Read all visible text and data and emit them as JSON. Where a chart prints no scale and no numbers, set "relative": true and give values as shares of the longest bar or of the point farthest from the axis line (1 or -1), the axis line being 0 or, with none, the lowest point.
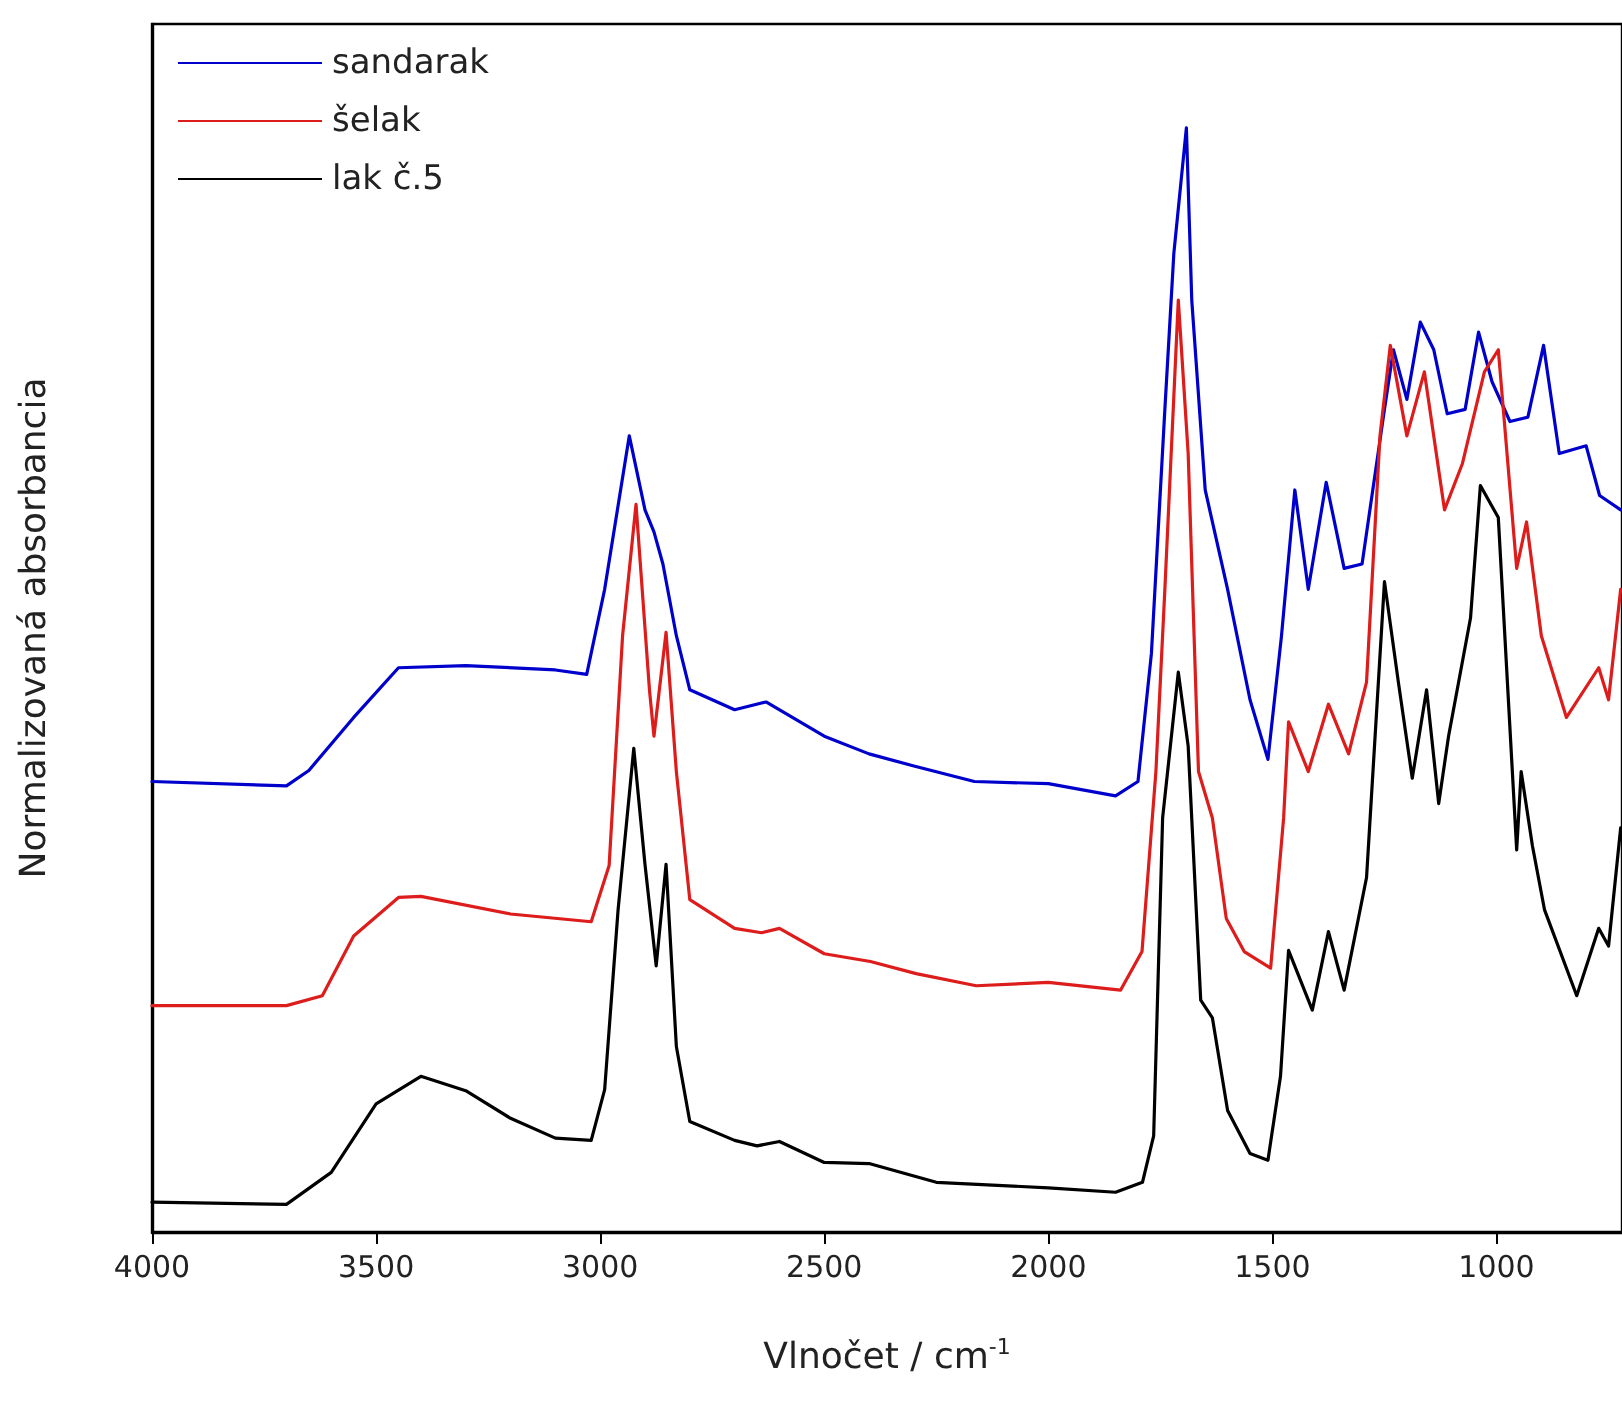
{
  "chart_data": {
    "type": "line",
    "xlabel": "Vlnočet / cm$^{-1}$",
    "ylabel": "Normalizovaná absorbancia",
    "relative": true,
    "xlim": [
      4000,
      720
    ],
    "xticks": [
      4000,
      3500,
      3000,
      2500,
      2000,
      1500,
      1000
    ],
    "legend": "top left",
    "grid": false,
    "marker": "none",
    "line_style": "solid",
    "series": [
      {
        "name": "sandarak",
        "color": "#0000cc",
        "x": [
          4000,
          3700,
          3650,
          3550,
          3450,
          3300,
          3100,
          3030,
          2990,
          2935,
          2900,
          2880,
          2860,
          2830,
          2800,
          2700,
          2630,
          2500,
          2400,
          2300,
          2165,
          2000,
          1850,
          1800,
          1770,
          1740,
          1720,
          1692,
          1680,
          1650,
          1600,
          1550,
          1510,
          1480,
          1450,
          1420,
          1380,
          1340,
          1300,
          1250,
          1230,
          1200,
          1170,
          1140,
          1110,
          1070,
          1040,
          1010,
          970,
          930,
          895,
          860,
          800,
          770,
          723
        ],
        "values": [
          0.408,
          0.404,
          0.418,
          0.466,
          0.511,
          0.513,
          0.509,
          0.505,
          0.582,
          0.721,
          0.654,
          0.634,
          0.605,
          0.54,
          0.491,
          0.473,
          0.48,
          0.449,
          0.433,
          0.422,
          0.408,
          0.406,
          0.395,
          0.408,
          0.524,
          0.745,
          0.886,
          1,
          0.844,
          0.672,
          0.582,
          0.482,
          0.428,
          0.539,
          0.672,
          0.582,
          0.679,
          0.601,
          0.605,
          0.745,
          0.799,
          0.754,
          0.824,
          0.799,
          0.741,
          0.745,
          0.815,
          0.77,
          0.734,
          0.738,
          0.803,
          0.705,
          0.712,
          0.667,
          0.654
        ]
      },
      {
        "name": "šelak",
        "color": "#dd1c1c",
        "x": [
          4000,
          3700,
          3620,
          3550,
          3450,
          3400,
          3200,
          3020,
          2980,
          2950,
          2920,
          2890,
          2880,
          2853,
          2830,
          2800,
          2700,
          2640,
          2600,
          2500,
          2397,
          2295,
          2161,
          2000,
          1839,
          1791,
          1760,
          1740,
          1710,
          1688,
          1665,
          1634,
          1603,
          1563,
          1504,
          1475,
          1464,
          1420,
          1375,
          1330,
          1290,
          1260,
          1237,
          1200,
          1161,
          1116,
          1076,
          1027,
          996,
          955,
          933,
          900,
          844,
          772,
          750,
          723
        ],
        "values": [
          0.205,
          0.205,
          0.214,
          0.268,
          0.303,
          0.304,
          0.288,
          0.281,
          0.332,
          0.54,
          0.659,
          0.491,
          0.449,
          0.543,
          0.417,
          0.301,
          0.275,
          0.271,
          0.275,
          0.252,
          0.245,
          0.234,
          0.223,
          0.226,
          0.219,
          0.254,
          0.417,
          0.582,
          0.844,
          0.705,
          0.417,
          0.375,
          0.284,
          0.254,
          0.239,
          0.375,
          0.462,
          0.417,
          0.478,
          0.433,
          0.498,
          0.721,
          0.803,
          0.721,
          0.779,
          0.654,
          0.696,
          0.779,
          0.799,
          0.601,
          0.643,
          0.54,
          0.466,
          0.511,
          0.482,
          0.582
        ]
      },
      {
        "name": "lak č.5",
        "color": "#000000",
        "x": [
          4000,
          3700,
          3600,
          3500,
          3400,
          3300,
          3200,
          3100,
          3020,
          2990,
          2960,
          2925,
          2900,
          2875,
          2853,
          2830,
          2800,
          2700,
          2650,
          2600,
          2500,
          2400,
          2250,
          2000,
          1850,
          1790,
          1765,
          1745,
          1710,
          1688,
          1660,
          1634,
          1600,
          1550,
          1510,
          1482,
          1464,
          1411,
          1375,
          1340,
          1290,
          1250,
          1219,
          1188,
          1156,
          1129,
          1107,
          1058,
          1036,
          996,
          955,
          945,
          920,
          893,
          821,
          772,
          750,
          723
        ],
        "values": [
          0.027,
          0.025,
          0.054,
          0.116,
          0.141,
          0.128,
          0.103,
          0.085,
          0.083,
          0.129,
          0.292,
          0.438,
          0.333,
          0.241,
          0.333,
          0.168,
          0.1,
          0.083,
          0.078,
          0.082,
          0.063,
          0.062,
          0.045,
          0.04,
          0.036,
          0.045,
          0.087,
          0.375,
          0.507,
          0.44,
          0.21,
          0.194,
          0.11,
          0.071,
          0.065,
          0.141,
          0.255,
          0.201,
          0.272,
          0.219,
          0.321,
          0.589,
          0.498,
          0.411,
          0.491,
          0.388,
          0.449,
          0.556,
          0.676,
          0.647,
          0.346,
          0.417,
          0.35,
          0.292,
          0.214,
          0.275,
          0.259,
          0.366
        ]
      }
    ]
  }
}
